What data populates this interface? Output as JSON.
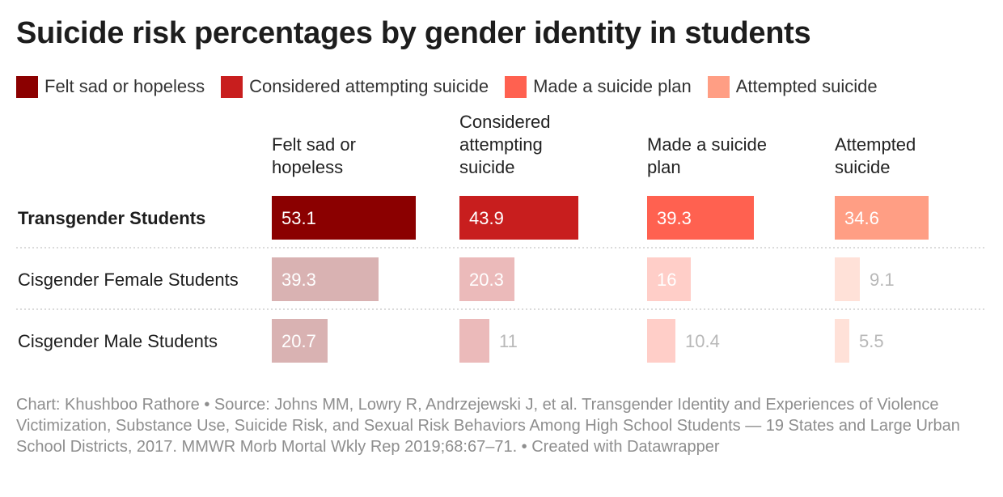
{
  "chart_data": {
    "type": "table",
    "title": "Suicide risk percentages by gender identity in students",
    "columns": [
      "Felt sad or hopeless",
      "Considered attempting suicide",
      "Made a suicide plan",
      "Attempted suicide"
    ],
    "column_headers": [
      [
        "Felt sad or",
        "hopeless"
      ],
      [
        "Considered",
        "attempting",
        "suicide"
      ],
      [
        "Made a suicide",
        "plan"
      ],
      [
        "Attempted",
        "suicide"
      ]
    ],
    "rows": [
      {
        "label": "Transgender Students",
        "values": [
          53.1,
          43.9,
          39.3,
          34.6
        ],
        "display": [
          "53.1",
          "43.9",
          "39.3",
          "34.6"
        ]
      },
      {
        "label": "Cisgender Female Students",
        "values": [
          39.3,
          20.3,
          16,
          9.1
        ],
        "display": [
          "39.3",
          "20.3",
          "16",
          "9.1"
        ]
      },
      {
        "label": "Cisgender Male Students",
        "values": [
          20.7,
          11,
          10.4,
          5.5
        ],
        "display": [
          "20.7",
          "11",
          "10.4",
          "5.5"
        ]
      }
    ],
    "highlight_row": 0,
    "series_colors": [
      "#8b0000",
      "#c81e1e",
      "#ff6150",
      "#ff9e84"
    ],
    "muted_colors": [
      "#d9b2b2",
      "#ebbaba",
      "#ffcec8",
      "#ffe1d8"
    ],
    "muted_value_color": "#b8b8b8",
    "highlight_value_color": "#ffffff",
    "max_value": 53.1
  },
  "legend": [
    {
      "label": "Felt sad or hopeless",
      "color": "#8b0000"
    },
    {
      "label": "Considered attempting suicide",
      "color": "#c81e1e"
    },
    {
      "label": "Made a suicide plan",
      "color": "#ff6150"
    },
    {
      "label": "Attempted suicide",
      "color": "#ff9e84"
    }
  ],
  "source": "Chart: Khushboo Rathore • Source: Johns MM, Lowry R, Andrzejewski J, et al. Transgender Identity and Experiences of Violence Victimization, Substance Use, Suicide Risk, and Sexual Risk Behaviors Among High School Students — 19 States and Large Urban School Districts, 2017. MMWR Morb Mortal Wkly Rep 2019;68:67–71. • Created with Datawrapper"
}
